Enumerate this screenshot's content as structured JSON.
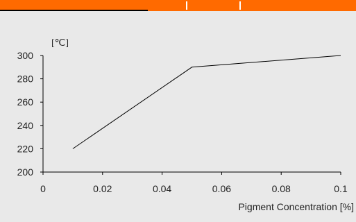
{
  "colors": {
    "background": "#e9e9e9",
    "header": "#ff6a00",
    "line": "#000000",
    "axis": "#000000"
  },
  "chart_data": {
    "type": "line",
    "title": "",
    "xlabel": "Pigment Concentration [%]",
    "ylabel": "[℃]",
    "xlim": [
      0,
      0.1
    ],
    "ylim": [
      200,
      300
    ],
    "x_ticks": [
      "0",
      "0.02",
      "0.04",
      "0.06",
      "0.08",
      "0.1"
    ],
    "y_ticks": [
      "200",
      "220",
      "240",
      "260",
      "280",
      "300"
    ],
    "grid": false,
    "series": [
      {
        "x": [
          0.01,
          0.05,
          0.1
        ],
        "y": [
          220,
          290,
          300
        ]
      }
    ]
  }
}
